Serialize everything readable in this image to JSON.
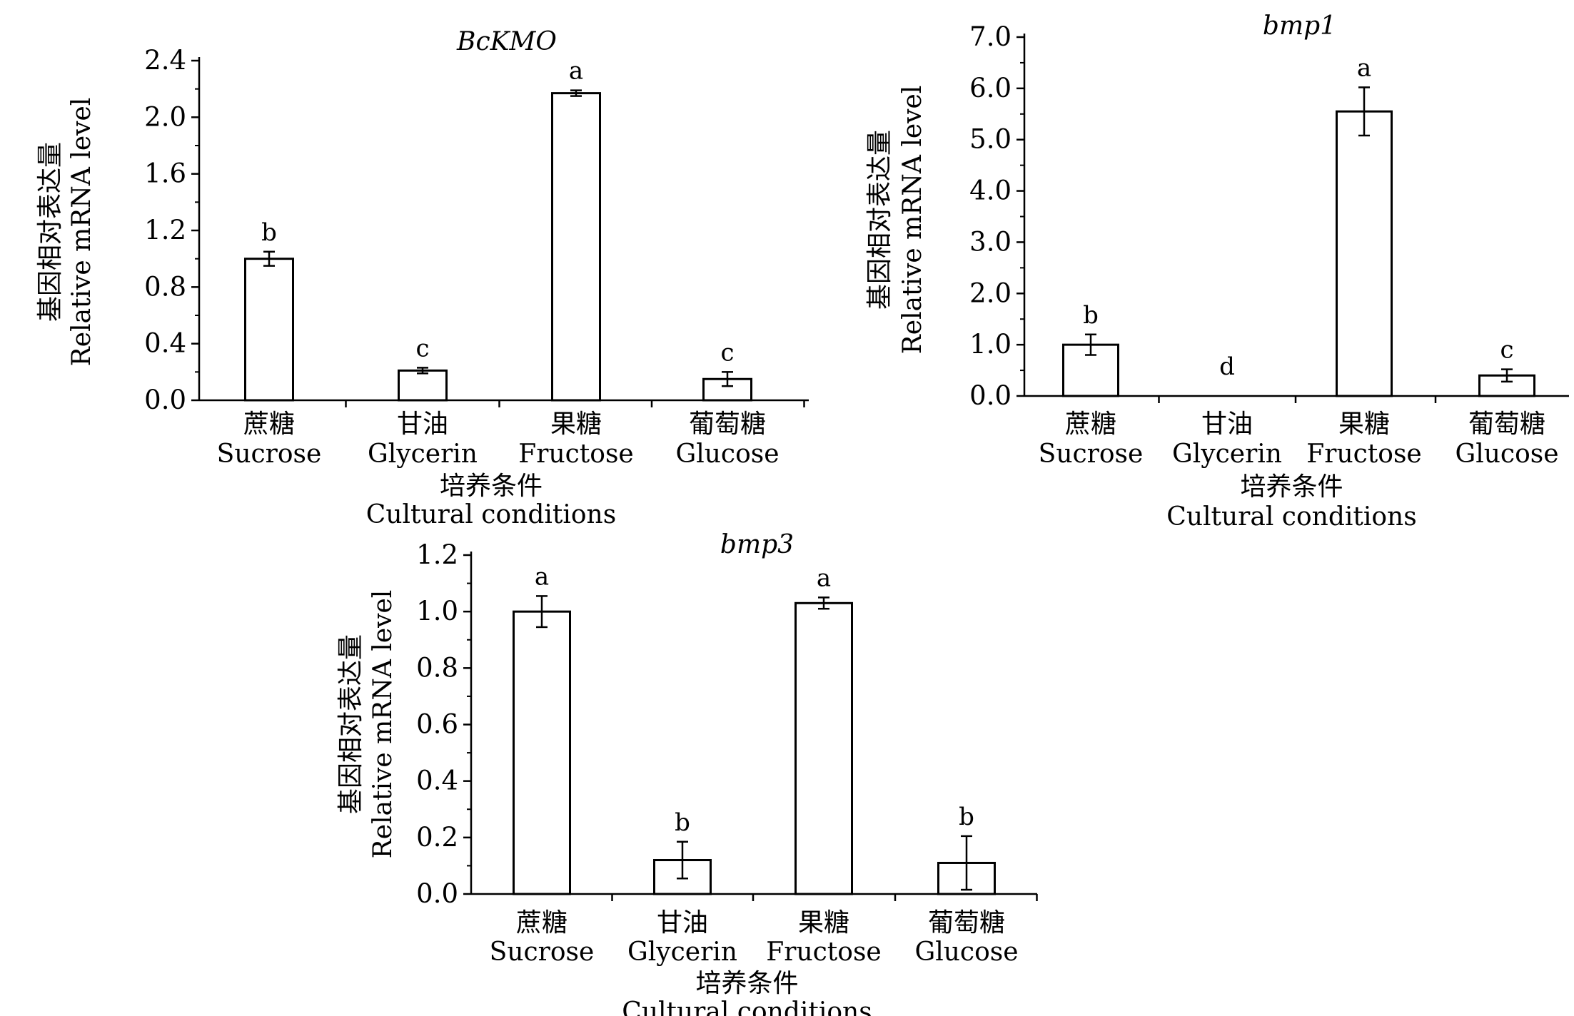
{
  "chart_data": [
    {
      "type": "bar",
      "title": "BcKMO",
      "ylabel_cn": "基因相对表达量",
      "ylabel": "Relative mRNA level",
      "xlabel_cn": "培养条件",
      "xlabel": "Cultural conditions",
      "categories_cn": [
        "蔗糖",
        "甘油",
        "果糖",
        "葡萄糖"
      ],
      "categories": [
        "Sucrose",
        "Glycerin",
        "Fructose",
        "Glucose"
      ],
      "values": [
        1.0,
        0.21,
        2.17,
        0.15
      ],
      "errors": [
        0.05,
        0.02,
        0.02,
        0.05
      ],
      "significance": [
        "b",
        "c",
        "a",
        "c"
      ],
      "yticks": [
        "0.0",
        "0.4",
        "0.8",
        "1.2",
        "1.6",
        "2.0",
        "2.4"
      ],
      "ylim": [
        0,
        2.4
      ]
    },
    {
      "type": "bar",
      "title": "bmp1",
      "ylabel_cn": "基因相对表达量",
      "ylabel": "Relative mRNA level",
      "xlabel_cn": "培养条件",
      "xlabel": "Cultural conditions",
      "categories_cn": [
        "蔗糖",
        "甘油",
        "果糖",
        "葡萄糖"
      ],
      "categories": [
        "Sucrose",
        "Glycerin",
        "Fructose",
        "Glucose"
      ],
      "values": [
        1.0,
        0.0,
        5.55,
        0.4
      ],
      "errors": [
        0.2,
        0.0,
        0.47,
        0.12
      ],
      "significance": [
        "b",
        "d",
        "a",
        "c"
      ],
      "yticks": [
        "0.0",
        "1.0",
        "2.0",
        "3.0",
        "4.0",
        "5.0",
        "6.0",
        "7.0"
      ],
      "ylim": [
        0,
        7.0
      ]
    },
    {
      "type": "bar",
      "title": "bmp3",
      "ylabel_cn": "基因相对表达量",
      "ylabel": "Relative mRNA level",
      "xlabel_cn": "培养条件",
      "xlabel": "Cultural conditions",
      "categories_cn": [
        "蔗糖",
        "甘油",
        "果糖",
        "葡萄糖"
      ],
      "categories": [
        "Sucrose",
        "Glycerin",
        "Fructose",
        "Glucose"
      ],
      "values": [
        1.0,
        0.12,
        1.03,
        0.11
      ],
      "errors": [
        0.055,
        0.065,
        0.02,
        0.095
      ],
      "significance": [
        "a",
        "b",
        "a",
        "b"
      ],
      "yticks": [
        "0.0",
        "0.2",
        "0.4",
        "0.6",
        "0.8",
        "1.0",
        "1.2"
      ],
      "ylim": [
        0,
        1.2
      ]
    }
  ]
}
